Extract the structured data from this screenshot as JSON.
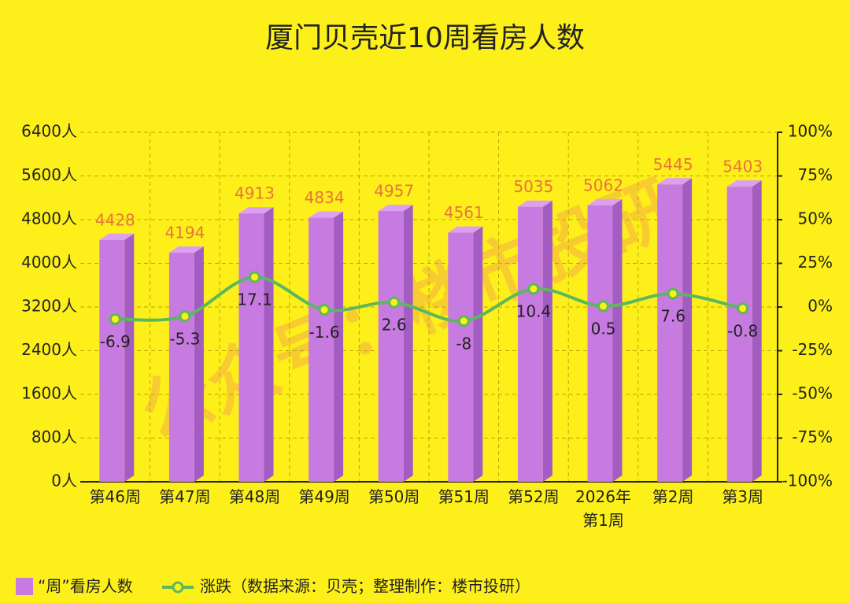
{
  "chart_data": {
    "type": "bar",
    "title": "厦门贝壳近10周看房人数",
    "watermark": "公众号：楼市投研",
    "categories": [
      "第46周",
      "第47周",
      "第48周",
      "第49周",
      "第50周",
      "第51周",
      "第52周",
      "2026年第1周",
      "第2周",
      "第3周"
    ],
    "series": [
      {
        "name": "“周”看房人数",
        "type": "bar",
        "color": "#c77be0",
        "values": [
          4428,
          4194,
          4913,
          4834,
          4957,
          4561,
          5035,
          5062,
          5445,
          5403
        ]
      },
      {
        "name": "涨跌（数据来源：贝壳；整理制作：楼市投研）",
        "type": "line",
        "axis": "y2",
        "color": "#5cb85c",
        "values": [
          -6.9,
          -5.3,
          17.1,
          -1.6,
          2.6,
          -8,
          10.4,
          0.5,
          7.6,
          -0.8
        ]
      }
    ],
    "ylim": [
      0,
      6400
    ],
    "yticks": [
      {
        "value": 0,
        "label": "0人"
      },
      {
        "value": 800,
        "label": "800人"
      },
      {
        "value": 1600,
        "label": "1600人"
      },
      {
        "value": 2400,
        "label": "2400人"
      },
      {
        "value": 3200,
        "label": "3200人"
      },
      {
        "value": 4000,
        "label": "4000人"
      },
      {
        "value": 4800,
        "label": "4800人"
      },
      {
        "value": 5600,
        "label": "5600人"
      },
      {
        "value": 6400,
        "label": "6400人"
      }
    ],
    "y2lim": [
      -100,
      100
    ],
    "y2ticks": [
      {
        "value": -100,
        "label": "-100%"
      },
      {
        "value": -75,
        "label": "-75%"
      },
      {
        "value": -50,
        "label": "-50%"
      },
      {
        "value": -25,
        "label": "-25%"
      },
      {
        "value": 0,
        "label": "0%"
      },
      {
        "value": 25,
        "label": "25%"
      },
      {
        "value": 50,
        "label": "50%"
      },
      {
        "value": 75,
        "label": "75%"
      },
      {
        "value": 100,
        "label": "100%"
      }
    ],
    "grid": true,
    "legend": "bottom"
  }
}
